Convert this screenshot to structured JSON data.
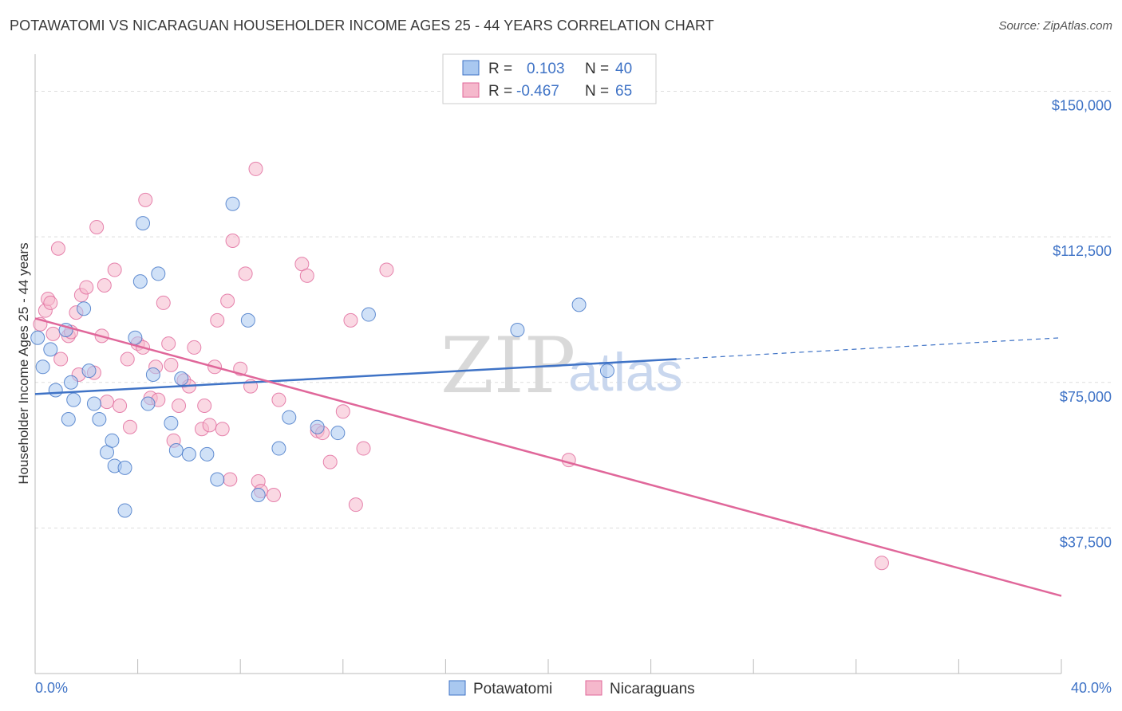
{
  "title": "POTAWATOMI VS NICARAGUAN HOUSEHOLDER INCOME AGES 25 - 44 YEARS CORRELATION CHART",
  "source": "Source: ZipAtlas.com",
  "watermark": {
    "zip": "ZIP",
    "atlas": "atlas"
  },
  "colors": {
    "blue": "#3f73c6",
    "blue_fill": "#a9c8f0",
    "pink": "#e0679a",
    "pink_fill": "#f5b8cc",
    "grid": "#dddddd"
  },
  "legend": {
    "r_label": "R =",
    "n_label": "N =",
    "rows": [
      {
        "series": "Potawatomi",
        "r": "0.103",
        "n": "40"
      },
      {
        "series": "Nicaraguans",
        "r": "-0.467",
        "n": "65"
      }
    ]
  },
  "chart_data": {
    "type": "scatter",
    "title": "POTAWATOMI VS NICARAGUAN HOUSEHOLDER INCOME AGES 25 - 44 YEARS CORRELATION CHART",
    "xlabel": "",
    "ylabel": "Householder Income Ages 25 - 44 years",
    "xlim": [
      0,
      40
    ],
    "ylim": [
      0,
      157500
    ],
    "x_tick_labels": [
      "0.0%",
      "40.0%"
    ],
    "y_ticks": [
      37500,
      75000,
      112500,
      150000
    ],
    "y_tick_labels": [
      "$37,500",
      "$75,000",
      "$112,500",
      "$150,000"
    ],
    "legend_entries": [
      "Potawatomi",
      "Nicaraguans"
    ],
    "series": [
      {
        "name": "Potawatomi",
        "trend": {
          "x": [
            0,
            25
          ],
          "y": [
            72000,
            81000
          ],
          "dashed_to_x": 40,
          "dashed_to_y": 86500
        },
        "points": [
          [
            0.1,
            86500
          ],
          [
            0.3,
            79000
          ],
          [
            0.6,
            83500
          ],
          [
            0.8,
            73000
          ],
          [
            1.2,
            88500
          ],
          [
            1.3,
            65500
          ],
          [
            1.4,
            75000
          ],
          [
            1.5,
            70500
          ],
          [
            1.9,
            94000
          ],
          [
            2.1,
            78000
          ],
          [
            2.3,
            69500
          ],
          [
            2.5,
            65500
          ],
          [
            2.8,
            57000
          ],
          [
            3.0,
            60000
          ],
          [
            3.1,
            53500
          ],
          [
            3.5,
            53000
          ],
          [
            3.5,
            42000
          ],
          [
            3.9,
            86500
          ],
          [
            4.1,
            101000
          ],
          [
            4.2,
            116000
          ],
          [
            4.4,
            69500
          ],
          [
            4.6,
            77000
          ],
          [
            4.8,
            103000
          ],
          [
            5.3,
            64500
          ],
          [
            5.5,
            57500
          ],
          [
            5.7,
            76000
          ],
          [
            6.0,
            56500
          ],
          [
            6.7,
            56500
          ],
          [
            7.1,
            50000
          ],
          [
            7.7,
            121000
          ],
          [
            8.3,
            91000
          ],
          [
            8.7,
            46000
          ],
          [
            9.5,
            58000
          ],
          [
            9.9,
            66000
          ],
          [
            11.0,
            63500
          ],
          [
            11.8,
            62000
          ],
          [
            13.0,
            92500
          ],
          [
            18.8,
            88500
          ],
          [
            21.2,
            95000
          ],
          [
            22.3,
            78000
          ]
        ]
      },
      {
        "name": "Nicaraguans",
        "trend": {
          "x": [
            0,
            40
          ],
          "y": [
            91500,
            20000
          ]
        },
        "points": [
          [
            0.2,
            90000
          ],
          [
            0.4,
            93500
          ],
          [
            0.5,
            96500
          ],
          [
            0.6,
            95500
          ],
          [
            0.7,
            87500
          ],
          [
            0.9,
            109500
          ],
          [
            1.0,
            81000
          ],
          [
            1.3,
            87000
          ],
          [
            1.4,
            88000
          ],
          [
            1.6,
            93000
          ],
          [
            1.7,
            77000
          ],
          [
            1.8,
            97500
          ],
          [
            2.0,
            99500
          ],
          [
            2.3,
            77500
          ],
          [
            2.4,
            115000
          ],
          [
            2.6,
            87000
          ],
          [
            2.7,
            100000
          ],
          [
            2.8,
            70000
          ],
          [
            3.1,
            104000
          ],
          [
            3.3,
            69000
          ],
          [
            3.6,
            81000
          ],
          [
            3.7,
            63500
          ],
          [
            4.0,
            85000
          ],
          [
            4.2,
            84000
          ],
          [
            4.3,
            122000
          ],
          [
            4.5,
            71000
          ],
          [
            4.7,
            79000
          ],
          [
            4.8,
            70500
          ],
          [
            5.0,
            95500
          ],
          [
            5.2,
            85000
          ],
          [
            5.3,
            79500
          ],
          [
            5.4,
            60000
          ],
          [
            5.6,
            69000
          ],
          [
            5.8,
            75500
          ],
          [
            6.0,
            74000
          ],
          [
            6.2,
            84000
          ],
          [
            6.5,
            63000
          ],
          [
            6.6,
            69000
          ],
          [
            6.8,
            64000
          ],
          [
            7.0,
            79000
          ],
          [
            7.1,
            91000
          ],
          [
            7.3,
            63000
          ],
          [
            7.5,
            96000
          ],
          [
            7.6,
            50000
          ],
          [
            7.7,
            111500
          ],
          [
            8.0,
            78500
          ],
          [
            8.2,
            103000
          ],
          [
            8.4,
            74000
          ],
          [
            8.6,
            130000
          ],
          [
            8.7,
            49500
          ],
          [
            8.8,
            47000
          ],
          [
            9.3,
            46000
          ],
          [
            9.5,
            70500
          ],
          [
            10.4,
            105500
          ],
          [
            10.6,
            102500
          ],
          [
            11.0,
            62500
          ],
          [
            11.2,
            62000
          ],
          [
            11.5,
            54500
          ],
          [
            12.0,
            67500
          ],
          [
            12.3,
            91000
          ],
          [
            12.5,
            43500
          ],
          [
            12.8,
            58000
          ],
          [
            13.7,
            104000
          ],
          [
            20.8,
            55000
          ],
          [
            33.0,
            28500
          ]
        ]
      }
    ]
  }
}
